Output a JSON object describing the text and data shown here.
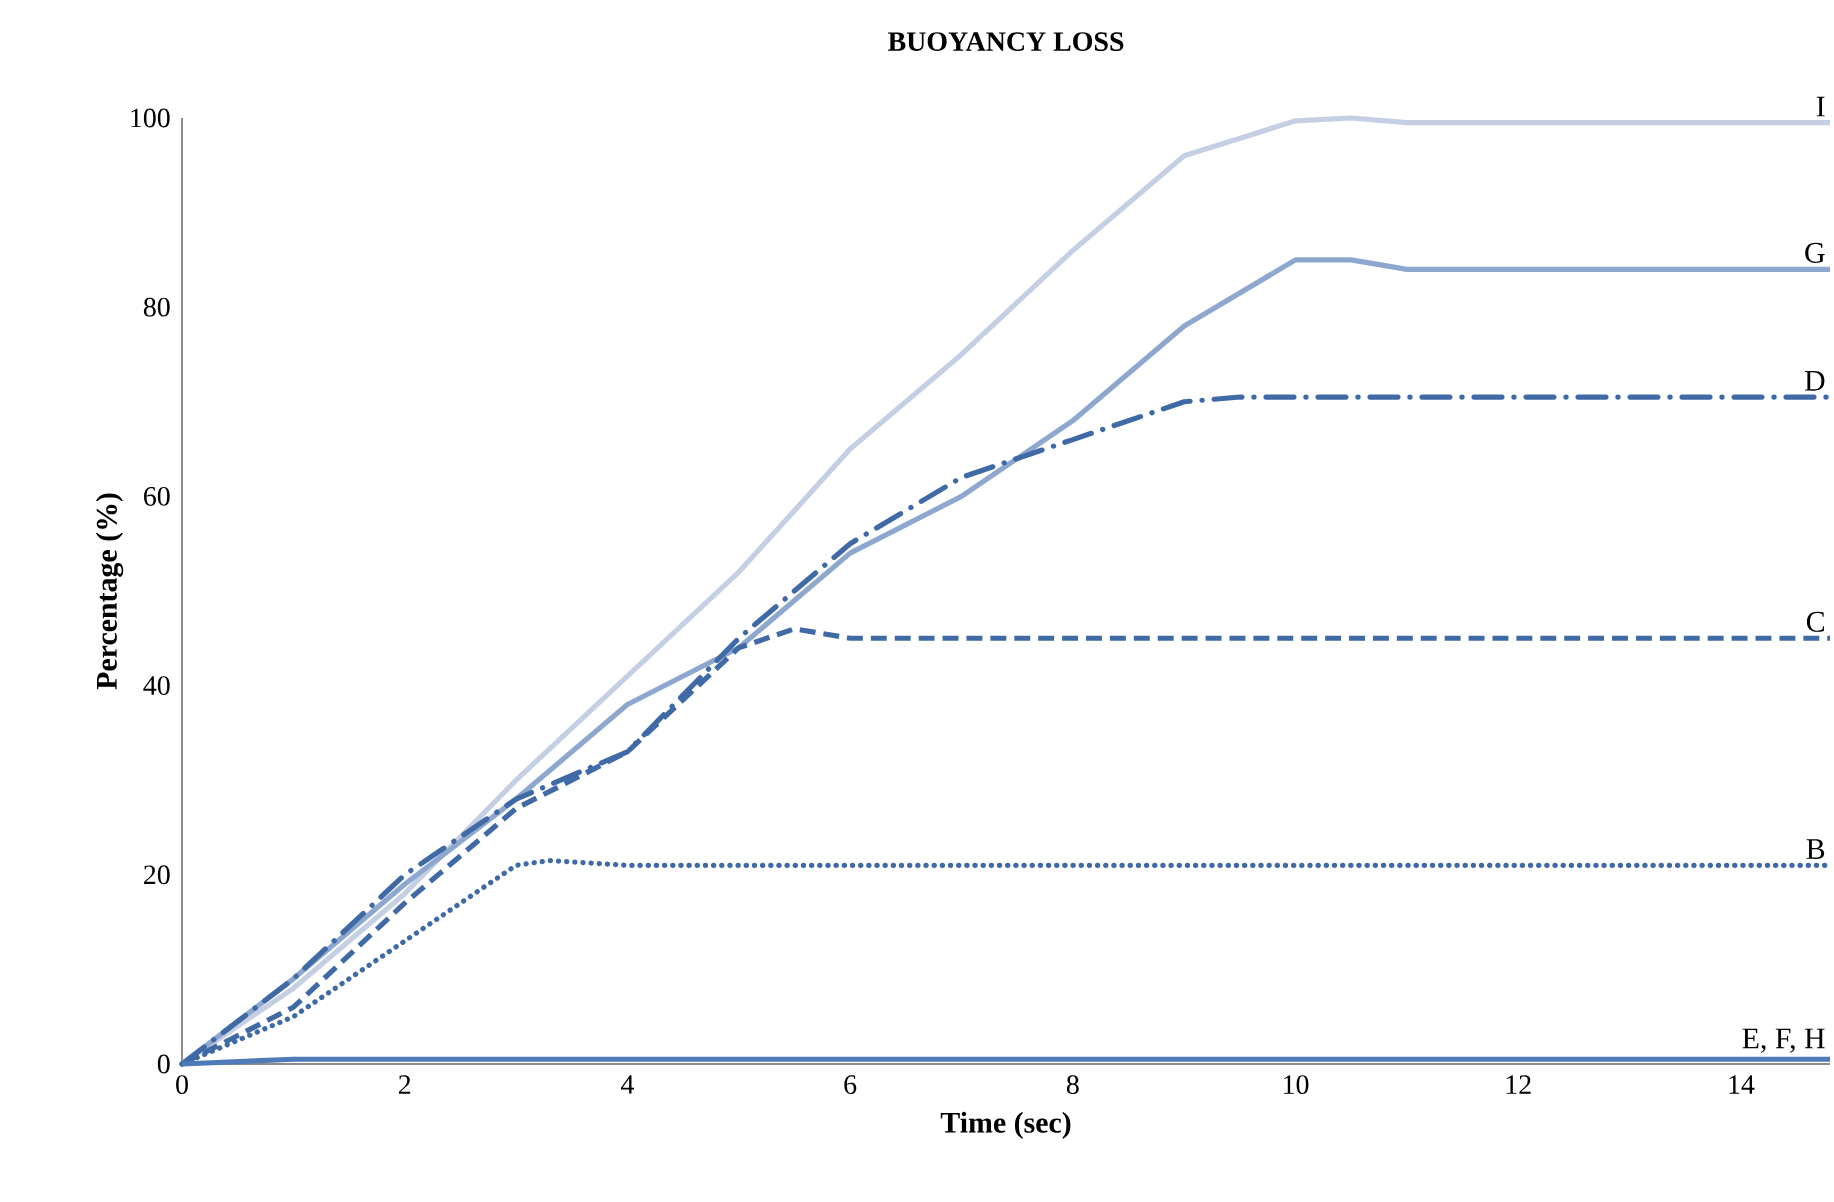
{
  "chart_data": {
    "type": "line",
    "title": "BUOYANCY LOSS",
    "xlabel": "Time (sec)",
    "ylabel": "Percentage (%)",
    "xlim": [
      0,
      14.8
    ],
    "ylim": [
      0,
      100
    ],
    "xticks": [
      0,
      2,
      4,
      6,
      8,
      10,
      12,
      14
    ],
    "yticks": [
      0,
      20,
      40,
      60,
      80,
      100
    ],
    "marker": "none",
    "series": [
      {
        "name": "I",
        "color": "#c5cfe3",
        "line_style": "solid",
        "x": [
          0,
          1,
          2,
          3,
          4,
          5,
          6,
          7,
          8,
          9,
          10,
          10.5,
          11,
          14.8
        ],
        "values": [
          0,
          8,
          18,
          30,
          41,
          52,
          65,
          75,
          86,
          96,
          99.7,
          100,
          99.5,
          99.5
        ]
      },
      {
        "name": "G",
        "color": "#8ea7cf",
        "line_style": "solid",
        "x": [
          0,
          1,
          2,
          3,
          4,
          5,
          6,
          7,
          8,
          9,
          10,
          10.5,
          11,
          14.8
        ],
        "values": [
          0,
          9,
          19,
          28,
          38,
          44,
          54,
          60,
          68,
          78,
          85,
          85,
          84,
          84
        ]
      },
      {
        "name": "D",
        "color": "#3f6aa5",
        "line_style": "dashdot",
        "x": [
          0,
          1,
          2,
          3,
          4,
          5,
          6,
          7,
          8,
          9,
          9.5,
          14.8
        ],
        "values": [
          0,
          9,
          20,
          28,
          33,
          45,
          55,
          62,
          66,
          70,
          70.5,
          70.5
        ]
      },
      {
        "name": "C",
        "color": "#3f6aa5",
        "line_style": "dashed",
        "x": [
          0,
          1,
          2,
          3,
          4,
          5,
          5.5,
          6,
          14.8
        ],
        "values": [
          0,
          6,
          17,
          27,
          33,
          44,
          46,
          45,
          45
        ]
      },
      {
        "name": "B",
        "color": "#3f6aa5",
        "line_style": "dotted",
        "x": [
          0,
          1,
          2,
          3,
          3.3,
          4,
          14.8
        ],
        "values": [
          0,
          5,
          13,
          21,
          21.5,
          21,
          21
        ]
      },
      {
        "name": "E, F, H",
        "color": "#4f7ab8",
        "line_style": "solid",
        "x": [
          0,
          1,
          14.8
        ],
        "values": [
          0,
          0.5,
          0.5
        ]
      }
    ]
  }
}
